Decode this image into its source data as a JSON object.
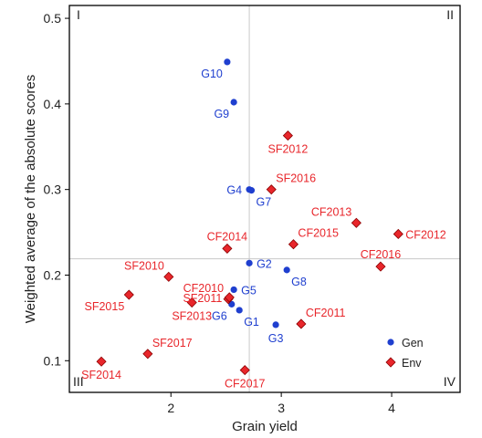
{
  "chart_data": {
    "type": "scatter",
    "xlabel": "Grain yield",
    "ylabel": "Weighted average of the absolute scores",
    "xlim": [
      1.08,
      4.62
    ],
    "ylim": [
      0.063,
      0.515
    ],
    "xticks": [
      "2",
      "3",
      "4"
    ],
    "yticks": [
      "0.1",
      "0.2",
      "0.3",
      "0.4",
      "0.5"
    ],
    "xtick_values": [
      2,
      3,
      4
    ],
    "ytick_values": [
      0.1,
      0.2,
      0.3,
      0.4,
      0.5
    ],
    "reference_lines": {
      "x": 2.71,
      "y": 0.219
    },
    "quadrant_labels": {
      "top_left": "I",
      "top_right": "II",
      "bottom_left": "III",
      "bottom_right": "IV"
    },
    "grid": false,
    "legend_position": "bottom-right",
    "colors": {
      "Gen": "#1f3fcf",
      "Env": "#e8262b",
      "Env_edge": "#8b0000",
      "reference_line": "#c8c8c8"
    },
    "series": [
      {
        "name": "Gen",
        "marker": "circle",
        "points": [
          {
            "label": "G10",
            "x": 2.51,
            "y": 0.449,
            "label_pos": "below-left"
          },
          {
            "label": "G9",
            "x": 2.57,
            "y": 0.402,
            "label_pos": "below-left"
          },
          {
            "label": "G4",
            "x": 2.71,
            "y": 0.3,
            "label_pos": "left"
          },
          {
            "label": "G7",
            "x": 2.73,
            "y": 0.299,
            "label_pos": "below-right"
          },
          {
            "label": "G2",
            "x": 2.71,
            "y": 0.214,
            "label_pos": "right"
          },
          {
            "label": "G5",
            "x": 2.57,
            "y": 0.183,
            "label_pos": "right"
          },
          {
            "label": "G8",
            "x": 3.05,
            "y": 0.206,
            "label_pos": "below-right"
          },
          {
            "label": "G6",
            "x": 2.55,
            "y": 0.166,
            "label_pos": "below-left"
          },
          {
            "label": "G1",
            "x": 2.62,
            "y": 0.159,
            "label_pos": "below-right"
          },
          {
            "label": "G3",
            "x": 2.95,
            "y": 0.142,
            "label_pos": "below"
          }
        ]
      },
      {
        "name": "Env",
        "marker": "diamond",
        "points": [
          {
            "label": "SF2012",
            "x": 3.06,
            "y": 0.363,
            "label_pos": "below"
          },
          {
            "label": "SF2016",
            "x": 2.91,
            "y": 0.3,
            "label_pos": "above-right"
          },
          {
            "label": "CF2013",
            "x": 3.68,
            "y": 0.261,
            "label_pos": "above-left"
          },
          {
            "label": "CF2012",
            "x": 4.06,
            "y": 0.248,
            "label_pos": "right"
          },
          {
            "label": "CF2014",
            "x": 2.51,
            "y": 0.231,
            "label_pos": "above"
          },
          {
            "label": "CF2015",
            "x": 3.11,
            "y": 0.236,
            "label_pos": "above-right"
          },
          {
            "label": "CF2016",
            "x": 3.9,
            "y": 0.21,
            "label_pos": "above"
          },
          {
            "label": "SF2010",
            "x": 1.98,
            "y": 0.198,
            "label_pos": "above-left"
          },
          {
            "label": "CF2010",
            "x": 2.52,
            "y": 0.172,
            "label_pos": "above-left"
          },
          {
            "label": "SF2011",
            "x": 2.53,
            "y": 0.174,
            "label_pos": "left"
          },
          {
            "label": "SF2015",
            "x": 1.62,
            "y": 0.177,
            "label_pos": "below-left"
          },
          {
            "label": "SF2013",
            "x": 2.19,
            "y": 0.168,
            "label_pos": "below"
          },
          {
            "label": "CF2011",
            "x": 3.18,
            "y": 0.143,
            "label_pos": "above-right"
          },
          {
            "label": "SF2017",
            "x": 1.79,
            "y": 0.108,
            "label_pos": "above-right"
          },
          {
            "label": "SF2014",
            "x": 1.37,
            "y": 0.099,
            "label_pos": "below"
          },
          {
            "label": "CF2017",
            "x": 2.67,
            "y": 0.089,
            "label_pos": "below"
          }
        ]
      }
    ]
  }
}
